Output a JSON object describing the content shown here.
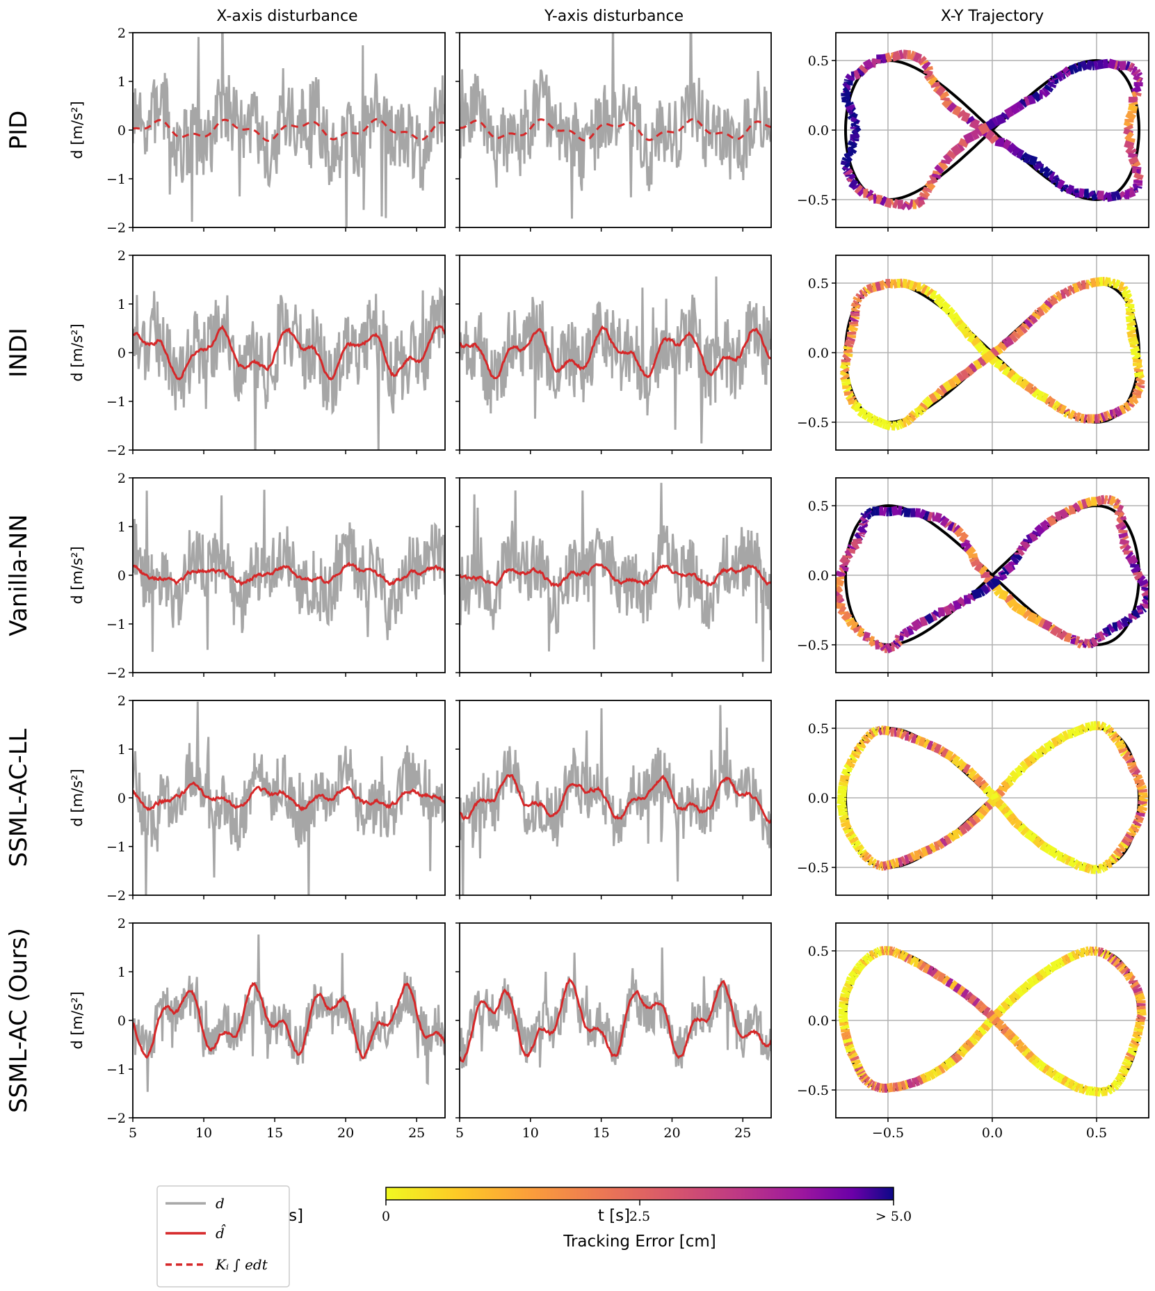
{
  "chart_data": {
    "type": "line",
    "column_titles": [
      "X-axis disturbance",
      "Y-axis disturbance",
      "X-Y Trajectory"
    ],
    "row_titles": [
      "PID",
      "INDI",
      "Vanilla-NN",
      "SSML-AC-LL",
      "SSML-AC (Ours)"
    ],
    "ylabel": "d [m/s²]",
    "xlabel": "t [s]",
    "time_xlim": [
      5,
      27
    ],
    "time_xticks": [
      "5",
      "10",
      "15",
      "20",
      "25"
    ],
    "time_ylim": [
      -2,
      2
    ],
    "time_yticks": [
      "2",
      "1",
      "0",
      "−1",
      "−2"
    ],
    "traj_xlim": [
      -0.75,
      0.75
    ],
    "traj_ylim": [
      -0.7,
      0.7
    ],
    "traj_xticks": [
      "−0.5",
      "0.0",
      "0.5"
    ],
    "traj_yticks": [
      "0.5",
      "0.0",
      "−0.5"
    ],
    "traj_grid": true,
    "legend": {
      "entries": [
        "d",
        "d̂",
        "Kᵢ ∫ edt"
      ],
      "placement": "bottom-left"
    },
    "colorbar": {
      "label": "Tracking Error [cm]",
      "ticks": [
        "0",
        "2.5",
        "> 5.0"
      ],
      "range": [
        0,
        5
      ],
      "colormap": "plasma"
    },
    "series_colors": {
      "d": "#a6a6a6",
      "d_hat": "#d62728",
      "reference": "#000000"
    },
    "rows": [
      {
        "name": "PID",
        "estimate_style": "dashed",
        "noise_level": 0.75,
        "x_estimate_amp": 0.15,
        "y_estimate_amp": 0.15,
        "traj_error": 3.6,
        "traj_wobble": 0.05
      },
      {
        "name": "INDI",
        "estimate_style": "solid",
        "noise_level": 0.8,
        "x_estimate_amp": 0.35,
        "y_estimate_amp": 0.35,
        "traj_error": 1.2,
        "traj_wobble": 0.025
      },
      {
        "name": "Vanilla-NN",
        "estimate_style": "solid",
        "noise_level": 0.65,
        "x_estimate_amp": 0.12,
        "y_estimate_amp": 0.15,
        "traj_error": 3.2,
        "traj_wobble": 0.045
      },
      {
        "name": "SSML-AC-LL",
        "estimate_style": "solid",
        "noise_level": 0.6,
        "x_estimate_amp": 0.15,
        "y_estimate_amp": 0.3,
        "traj_error": 1.0,
        "traj_wobble": 0.02
      },
      {
        "name": "SSML-AC (Ours)",
        "estimate_style": "solid",
        "noise_level": 0.45,
        "x_estimate_amp": 0.5,
        "y_estimate_amp": 0.55,
        "traj_error": 1.1,
        "traj_wobble": 0.015
      }
    ]
  }
}
